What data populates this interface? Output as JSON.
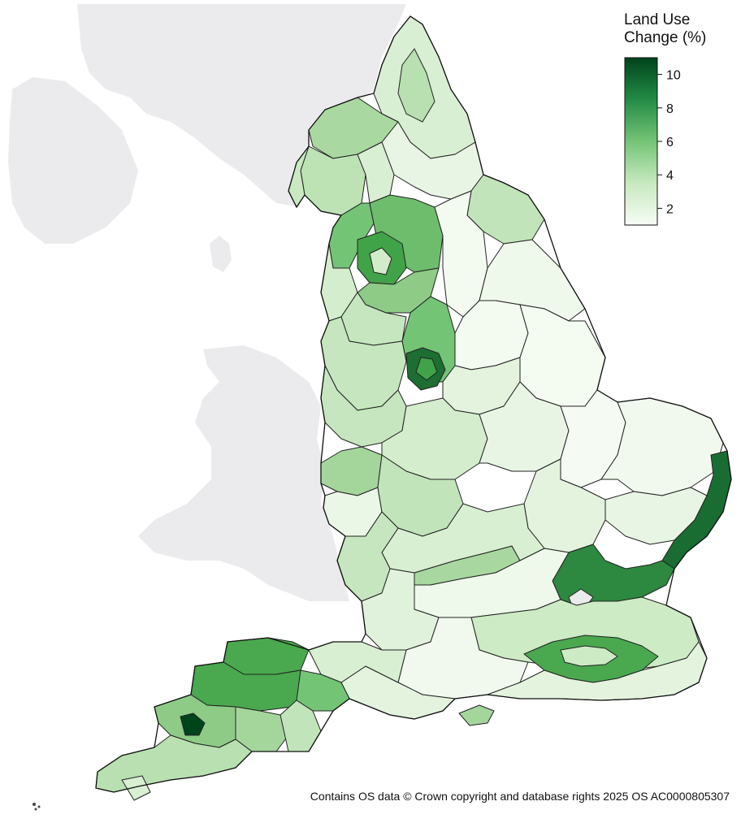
{
  "legend": {
    "title_line1": "Land Use",
    "title_line2": "Change (%)",
    "ticks": [
      "10",
      "8",
      "6",
      "4",
      "2"
    ],
    "min": 1,
    "max": 11,
    "color_low": "#f7fcf5",
    "color_high": "#00441b"
  },
  "attribution": "Contains OS data © Crown copyright and database rights 2025 OS AC0000805307",
  "colors": {
    "background_land": "#ebebed",
    "region_outline": "#222222"
  }
}
